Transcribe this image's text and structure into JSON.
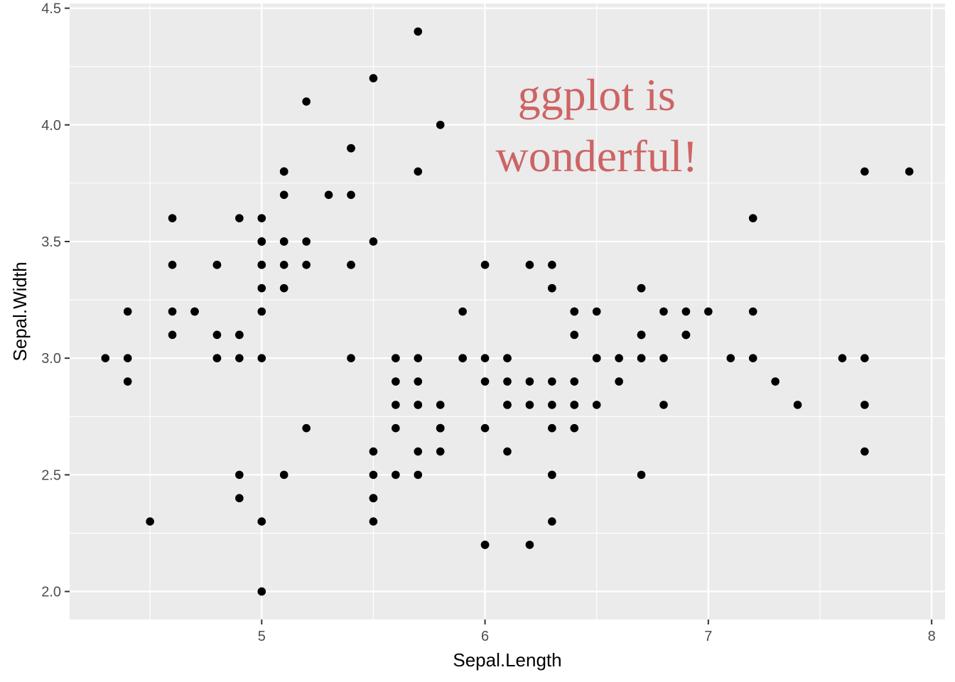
{
  "chart_data": {
    "type": "scatter",
    "title": "",
    "xlabel": "Sepal.Length",
    "ylabel": "Sepal.Width",
    "xlim": [
      4.14,
      8.06
    ],
    "ylim": [
      1.88,
      4.52
    ],
    "x_ticks": [
      5,
      6,
      7,
      8
    ],
    "x_tick_labels": [
      "5",
      "6",
      "7",
      "8"
    ],
    "y_ticks": [
      2.0,
      2.5,
      3.0,
      3.5,
      4.0,
      4.5
    ],
    "y_tick_labels": [
      "2.0",
      "2.5",
      "3.0",
      "3.5",
      "4.0",
      "4.5"
    ],
    "grid": true,
    "background_color": "#ebebeb",
    "grid_color": "#ffffff",
    "point_color": "#000000",
    "annotation": {
      "lines": [
        "ggplot is",
        "wonderful!"
      ],
      "x": 6.5,
      "y": 4.0,
      "color": "#cd6464"
    },
    "points": [
      [
        5.1,
        3.5
      ],
      [
        4.9,
        3.0
      ],
      [
        4.7,
        3.2
      ],
      [
        4.6,
        3.1
      ],
      [
        5.0,
        3.6
      ],
      [
        5.4,
        3.9
      ],
      [
        4.6,
        3.4
      ],
      [
        5.0,
        3.4
      ],
      [
        4.4,
        2.9
      ],
      [
        4.9,
        3.1
      ],
      [
        5.4,
        3.7
      ],
      [
        4.8,
        3.4
      ],
      [
        4.8,
        3.0
      ],
      [
        4.3,
        3.0
      ],
      [
        5.8,
        4.0
      ],
      [
        5.7,
        4.4
      ],
      [
        5.4,
        3.9
      ],
      [
        5.1,
        3.5
      ],
      [
        5.7,
        3.8
      ],
      [
        5.1,
        3.8
      ],
      [
        5.4,
        3.4
      ],
      [
        5.1,
        3.7
      ],
      [
        4.6,
        3.6
      ],
      [
        5.1,
        3.3
      ],
      [
        4.8,
        3.4
      ],
      [
        5.0,
        3.0
      ],
      [
        5.0,
        3.4
      ],
      [
        5.2,
        3.5
      ],
      [
        5.2,
        3.4
      ],
      [
        4.7,
        3.2
      ],
      [
        4.8,
        3.1
      ],
      [
        5.4,
        3.4
      ],
      [
        5.2,
        4.1
      ],
      [
        5.5,
        4.2
      ],
      [
        4.9,
        3.1
      ],
      [
        5.0,
        3.2
      ],
      [
        5.5,
        3.5
      ],
      [
        4.9,
        3.6
      ],
      [
        4.4,
        3.0
      ],
      [
        5.1,
        3.4
      ],
      [
        5.0,
        3.5
      ],
      [
        4.5,
        2.3
      ],
      [
        4.4,
        3.2
      ],
      [
        5.0,
        3.5
      ],
      [
        5.1,
        3.8
      ],
      [
        4.8,
        3.0
      ],
      [
        5.1,
        3.8
      ],
      [
        4.6,
        3.2
      ],
      [
        5.3,
        3.7
      ],
      [
        5.0,
        3.3
      ],
      [
        7.0,
        3.2
      ],
      [
        6.4,
        3.2
      ],
      [
        6.9,
        3.1
      ],
      [
        5.5,
        2.3
      ],
      [
        6.5,
        2.8
      ],
      [
        5.7,
        2.8
      ],
      [
        6.3,
        3.3
      ],
      [
        4.9,
        2.4
      ],
      [
        6.6,
        2.9
      ],
      [
        5.2,
        2.7
      ],
      [
        5.0,
        2.0
      ],
      [
        5.9,
        3.0
      ],
      [
        6.0,
        2.2
      ],
      [
        6.1,
        2.9
      ],
      [
        5.6,
        2.9
      ],
      [
        6.7,
        3.1
      ],
      [
        5.6,
        3.0
      ],
      [
        5.8,
        2.7
      ],
      [
        6.2,
        2.2
      ],
      [
        5.6,
        2.5
      ],
      [
        5.9,
        3.2
      ],
      [
        6.1,
        2.8
      ],
      [
        6.3,
        2.5
      ],
      [
        6.1,
        2.8
      ],
      [
        6.4,
        2.9
      ],
      [
        6.6,
        3.0
      ],
      [
        6.8,
        2.8
      ],
      [
        6.7,
        3.0
      ],
      [
        6.0,
        2.9
      ],
      [
        5.7,
        2.6
      ],
      [
        5.5,
        2.4
      ],
      [
        5.5,
        2.4
      ],
      [
        5.8,
        2.7
      ],
      [
        6.0,
        2.7
      ],
      [
        5.4,
        3.0
      ],
      [
        6.0,
        3.4
      ],
      [
        6.7,
        3.1
      ],
      [
        6.3,
        2.3
      ],
      [
        5.6,
        3.0
      ],
      [
        5.5,
        2.5
      ],
      [
        5.5,
        2.6
      ],
      [
        6.1,
        3.0
      ],
      [
        5.8,
        2.6
      ],
      [
        5.0,
        2.3
      ],
      [
        5.6,
        2.7
      ],
      [
        5.7,
        3.0
      ],
      [
        5.7,
        2.9
      ],
      [
        6.2,
        2.9
      ],
      [
        5.1,
        2.5
      ],
      [
        5.7,
        2.8
      ],
      [
        6.3,
        3.3
      ],
      [
        5.8,
        2.7
      ],
      [
        7.1,
        3.0
      ],
      [
        6.3,
        2.9
      ],
      [
        6.5,
        3.0
      ],
      [
        7.6,
        3.0
      ],
      [
        4.9,
        2.5
      ],
      [
        7.3,
        2.9
      ],
      [
        6.7,
        2.5
      ],
      [
        7.2,
        3.6
      ],
      [
        6.5,
        3.2
      ],
      [
        6.4,
        2.7
      ],
      [
        6.8,
        3.0
      ],
      [
        5.7,
        2.5
      ],
      [
        5.8,
        2.8
      ],
      [
        6.4,
        3.2
      ],
      [
        6.5,
        3.0
      ],
      [
        7.7,
        3.8
      ],
      [
        7.7,
        2.6
      ],
      [
        6.0,
        2.2
      ],
      [
        6.9,
        3.2
      ],
      [
        5.6,
        2.8
      ],
      [
        7.7,
        2.8
      ],
      [
        6.3,
        2.7
      ],
      [
        6.7,
        3.3
      ],
      [
        7.2,
        3.2
      ],
      [
        6.2,
        2.8
      ],
      [
        6.1,
        3.0
      ],
      [
        6.4,
        2.8
      ],
      [
        7.2,
        3.0
      ],
      [
        7.4,
        2.8
      ],
      [
        7.9,
        3.8
      ],
      [
        6.4,
        2.8
      ],
      [
        6.3,
        2.8
      ],
      [
        6.1,
        2.6
      ],
      [
        7.7,
        3.0
      ],
      [
        6.3,
        3.4
      ],
      [
        6.4,
        3.1
      ],
      [
        6.0,
        3.0
      ],
      [
        6.9,
        3.1
      ],
      [
        6.7,
        3.1
      ],
      [
        6.9,
        3.1
      ],
      [
        5.8,
        2.7
      ],
      [
        6.8,
        3.2
      ],
      [
        6.7,
        3.3
      ],
      [
        6.7,
        3.0
      ],
      [
        6.3,
        2.5
      ],
      [
        6.5,
        3.0
      ],
      [
        6.2,
        3.4
      ],
      [
        5.9,
        3.0
      ]
    ]
  }
}
